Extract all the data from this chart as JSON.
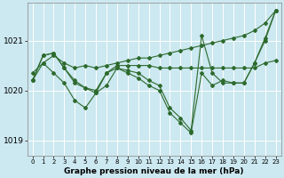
{
  "xlabel": "Graphe pression niveau de la mer (hPa)",
  "bg_color": "#cce8f0",
  "grid_color": "#ffffff",
  "line_color": "#2d6a2d",
  "xlim": [
    -0.5,
    23.5
  ],
  "ylim": [
    1018.7,
    1021.75
  ],
  "yticks": [
    1019,
    1020,
    1021
  ],
  "xticks": [
    0,
    1,
    2,
    3,
    4,
    5,
    6,
    7,
    8,
    9,
    10,
    11,
    12,
    13,
    14,
    15,
    16,
    17,
    18,
    19,
    20,
    21,
    22,
    23
  ],
  "series": [
    [
      1020.2,
      1020.55,
      1020.7,
      1020.55,
      1020.45,
      1020.5,
      1020.45,
      1020.5,
      1020.55,
      1020.6,
      1020.65,
      1020.65,
      1020.7,
      1020.75,
      1020.8,
      1020.85,
      1020.9,
      1020.95,
      1021.0,
      1021.05,
      1021.1,
      1021.2,
      1021.35,
      1021.6
    ],
    [
      1020.2,
      1020.7,
      1020.75,
      1020.45,
      1020.2,
      1020.05,
      1020.0,
      1020.35,
      1020.5,
      1020.5,
      1020.5,
      1020.5,
      1020.45,
      1020.45,
      1020.45,
      1020.45,
      1020.45,
      1020.45,
      1020.45,
      1020.45,
      1020.45,
      1020.45,
      1020.55,
      1020.6
    ],
    [
      1020.2,
      1020.7,
      1020.75,
      1020.45,
      1020.15,
      1020.05,
      1019.95,
      1020.35,
      1020.45,
      1020.4,
      1020.35,
      1020.2,
      1020.1,
      1019.65,
      1019.45,
      1019.2,
      1021.1,
      1020.35,
      1020.15,
      1020.15,
      1020.15,
      1020.55,
      1021.05,
      1021.6
    ],
    [
      1020.35,
      1020.55,
      1020.35,
      1020.15,
      1019.8,
      1019.65,
      1019.95,
      1020.1,
      1020.45,
      1020.35,
      1020.25,
      1020.1,
      1020.0,
      1019.55,
      1019.35,
      1019.15,
      1020.35,
      1020.1,
      1020.2,
      1020.15,
      1020.15,
      1020.55,
      1021.0,
      1021.6
    ]
  ],
  "marker": "D",
  "markersize": 2,
  "linewidth": 0.8
}
